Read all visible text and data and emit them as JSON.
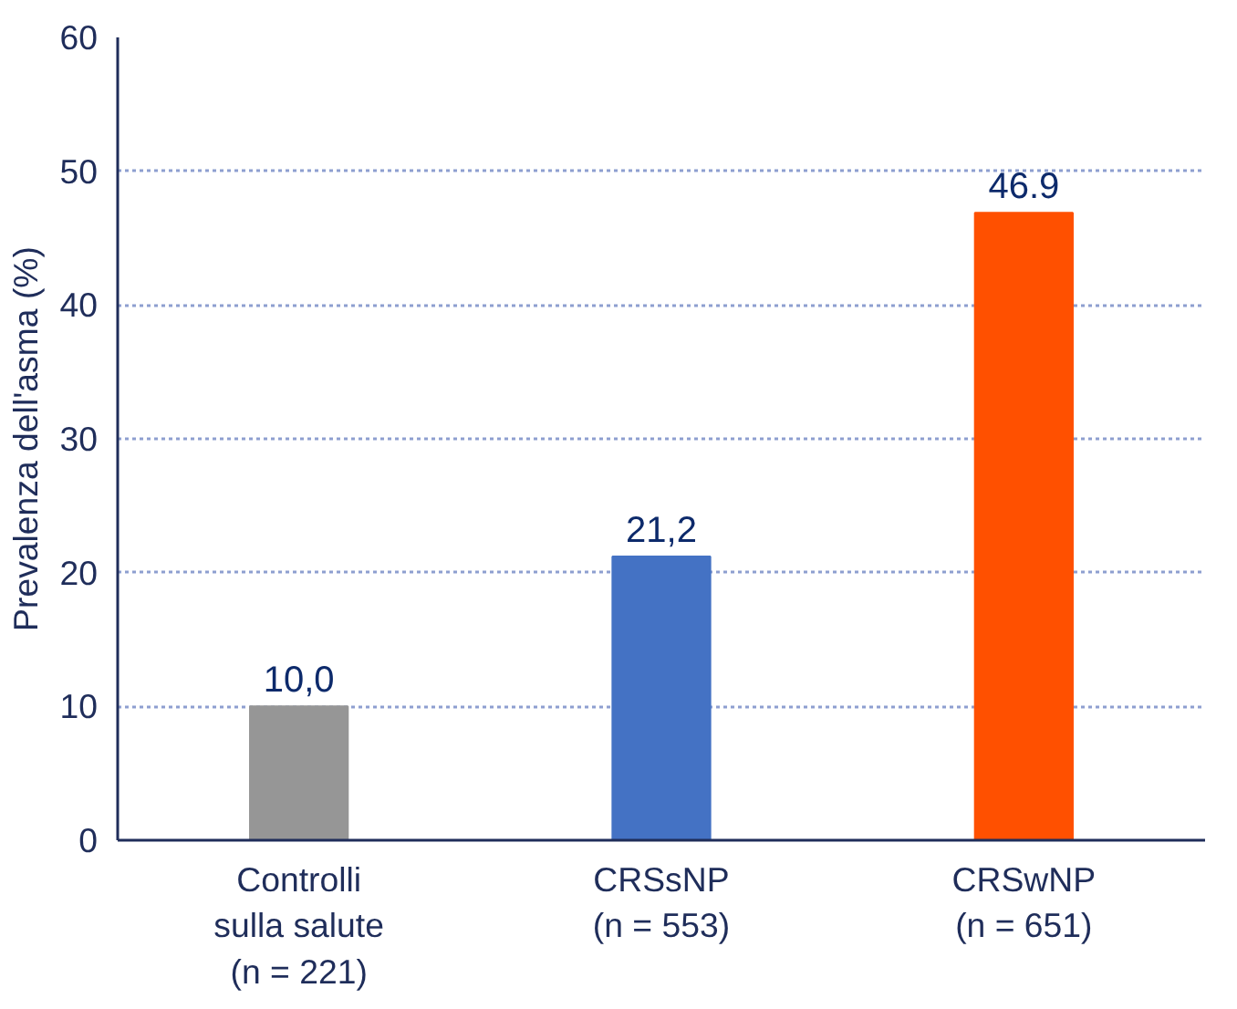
{
  "chart_data": {
    "type": "bar",
    "ylabel": "Prevalenza dell'asma (%)",
    "categories": [
      "Controlli\nsulla salute\n(n = 221)",
      "CRSsNP\n(n = 553)",
      "CRSwNP\n(n = 651)"
    ],
    "values": [
      10.0,
      21.2,
      46.9
    ],
    "colors": [
      "#969696",
      "#4472c4",
      "#ff5000"
    ],
    "value_labels": [
      "10,0",
      "21,2",
      "46.9"
    ],
    "ylim": [
      0,
      60
    ],
    "yticks": [
      0,
      10,
      20,
      30,
      40,
      50,
      60
    ],
    "grid": "y"
  }
}
